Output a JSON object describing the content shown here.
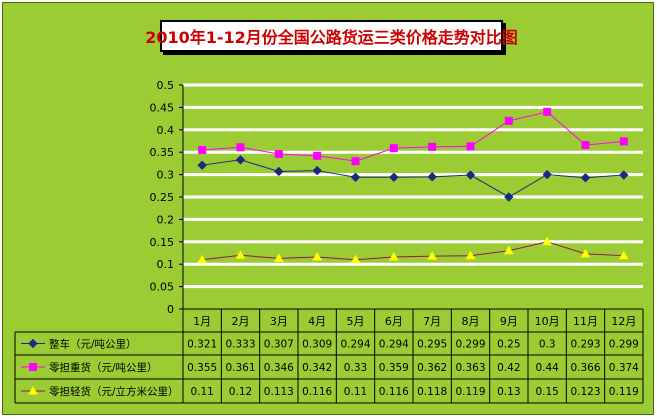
{
  "chart_data": {
    "type": "line",
    "title": "2010年1-12月份全国公路货运三类价格走势对比图",
    "categories": [
      "1月",
      "2月",
      "3月",
      "4月",
      "5月",
      "6月",
      "7月",
      "8月",
      "9月",
      "10月",
      "11月",
      "12月"
    ],
    "ylim": [
      0,
      0.5
    ],
    "yticks": [
      "0",
      "0.05",
      "0.1",
      "0.15",
      "0.2",
      "0.25",
      "0.3",
      "0.35",
      "0.4",
      "0.45",
      "0.5"
    ],
    "grid": true,
    "series": [
      {
        "name": "整车（元/吨公里）",
        "color": "#1a2a80",
        "marker": "diamond",
        "values": [
          0.321,
          0.333,
          0.307,
          0.309,
          0.294,
          0.294,
          0.295,
          0.299,
          0.25,
          0.3,
          0.293,
          0.299
        ],
        "labels": [
          "0.321",
          "0.333",
          "0.307",
          "0.309",
          "0.294",
          "0.294",
          "0.295",
          "0.299",
          "0.25",
          "0.3",
          "0.293",
          "0.299"
        ]
      },
      {
        "name": "零担重货（元/吨公里）",
        "color": "#ff00ff",
        "marker": "square",
        "values": [
          0.355,
          0.361,
          0.346,
          0.342,
          0.33,
          0.359,
          0.362,
          0.363,
          0.42,
          0.44,
          0.366,
          0.374
        ],
        "labels": [
          "0.355",
          "0.361",
          "0.346",
          "0.342",
          "0.33",
          "0.359",
          "0.362",
          "0.363",
          "0.42",
          "0.44",
          "0.366",
          "0.374"
        ]
      },
      {
        "name": "零担轻货（元/立方米公里）",
        "color": "#ffff00",
        "marker": "triangle",
        "values": [
          0.11,
          0.12,
          0.113,
          0.116,
          0.11,
          0.116,
          0.118,
          0.119,
          0.13,
          0.15,
          0.123,
          0.119
        ],
        "labels": [
          "0.11",
          "0.12",
          "0.113",
          "0.116",
          "0.11",
          "0.116",
          "0.118",
          "0.119",
          "0.13",
          "0.15",
          "0.123",
          "0.119"
        ]
      }
    ]
  }
}
